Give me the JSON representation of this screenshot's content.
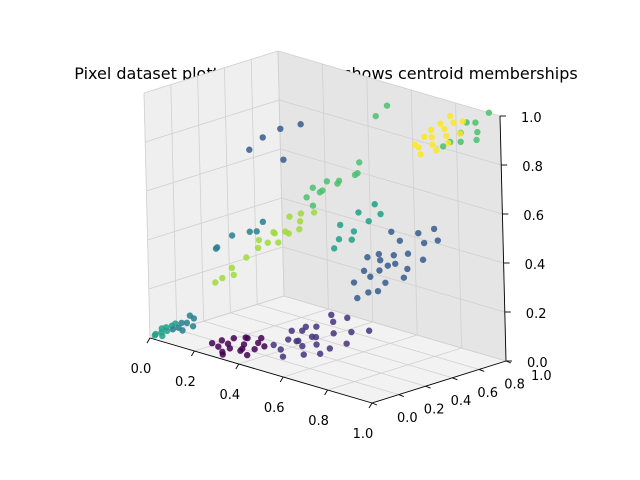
{
  "chart_data": {
    "type": "scatter",
    "projection": "3d",
    "title": "Pixel dataset plotted in 3D. Color shows centroid memberships",
    "xlabel": "",
    "ylabel": "",
    "zlabel": "",
    "xlim": [
      0,
      1
    ],
    "ylim": [
      0,
      1
    ],
    "zlim": [
      0,
      1
    ],
    "xticks": [
      "0.0",
      "0.2",
      "0.4",
      "0.6",
      "0.8",
      "1.0"
    ],
    "yticks": [
      "0.0",
      "0.2",
      "0.4",
      "0.6",
      "0.8",
      "1.0"
    ],
    "zticks": [
      "0.0",
      "0.2",
      "0.4",
      "0.6",
      "0.8",
      "1.0"
    ],
    "grid": true,
    "legend": "none",
    "series": [
      {
        "color": "#440154",
        "points": [
          [
            0.3,
            0.1,
            0.02
          ],
          [
            0.34,
            0.14,
            0.04
          ],
          [
            0.26,
            0.08,
            0.02
          ],
          [
            0.38,
            0.18,
            0.05
          ],
          [
            0.32,
            0.2,
            0.05
          ],
          [
            0.28,
            0.12,
            0.03
          ],
          [
            0.36,
            0.08,
            0.03
          ],
          [
            0.24,
            0.14,
            0.03
          ],
          [
            0.4,
            0.12,
            0.04
          ],
          [
            0.33,
            0.17,
            0.06
          ],
          [
            0.29,
            0.06,
            0.01
          ],
          [
            0.37,
            0.22,
            0.06
          ],
          [
            0.31,
            0.03,
            0.01
          ],
          [
            0.42,
            0.16,
            0.05
          ],
          [
            0.27,
            0.18,
            0.04
          ],
          [
            0.35,
            0.11,
            0.03
          ],
          [
            0.22,
            0.1,
            0.02
          ],
          [
            0.39,
            0.08,
            0.02
          ]
        ]
      },
      {
        "color": "#46327e",
        "points": [
          [
            0.55,
            0.2,
            0.1
          ],
          [
            0.6,
            0.25,
            0.12
          ],
          [
            0.5,
            0.15,
            0.06
          ],
          [
            0.65,
            0.3,
            0.14
          ],
          [
            0.58,
            0.18,
            0.09
          ],
          [
            0.52,
            0.28,
            0.12
          ],
          [
            0.62,
            0.22,
            0.1
          ],
          [
            0.48,
            0.24,
            0.08
          ],
          [
            0.7,
            0.35,
            0.15
          ],
          [
            0.56,
            0.32,
            0.14
          ],
          [
            0.45,
            0.18,
            0.06
          ],
          [
            0.66,
            0.18,
            0.08
          ],
          [
            0.54,
            0.1,
            0.05
          ],
          [
            0.6,
            0.38,
            0.16
          ],
          [
            0.72,
            0.28,
            0.12
          ],
          [
            0.5,
            0.34,
            0.12
          ],
          [
            0.58,
            0.4,
            0.18
          ],
          [
            0.64,
            0.42,
            0.18
          ],
          [
            0.46,
            0.3,
            0.1
          ],
          [
            0.68,
            0.22,
            0.1
          ],
          [
            0.53,
            0.22,
            0.09
          ],
          [
            0.61,
            0.14,
            0.07
          ],
          [
            0.75,
            0.4,
            0.16
          ],
          [
            0.57,
            0.27,
            0.11
          ]
        ]
      },
      {
        "color": "#365c8d",
        "points": [
          [
            0.7,
            0.5,
            0.35
          ],
          [
            0.75,
            0.55,
            0.4
          ],
          [
            0.68,
            0.6,
            0.42
          ],
          [
            0.8,
            0.62,
            0.45
          ],
          [
            0.72,
            0.45,
            0.3
          ],
          [
            0.78,
            0.48,
            0.35
          ],
          [
            0.82,
            0.58,
            0.4
          ],
          [
            0.74,
            0.66,
            0.48
          ],
          [
            0.66,
            0.52,
            0.36
          ],
          [
            0.85,
            0.66,
            0.5
          ],
          [
            0.76,
            0.58,
            0.44
          ],
          [
            0.7,
            0.4,
            0.28
          ],
          [
            0.88,
            0.6,
            0.45
          ],
          [
            0.64,
            0.58,
            0.4
          ],
          [
            0.8,
            0.7,
            0.52
          ],
          [
            0.73,
            0.52,
            0.38
          ],
          [
            0.84,
            0.52,
            0.38
          ],
          [
            0.77,
            0.44,
            0.32
          ],
          [
            0.69,
            0.68,
            0.5
          ],
          [
            0.86,
            0.72,
            0.55
          ],
          [
            0.71,
            0.56,
            0.41
          ],
          [
            0.79,
            0.54,
            0.42
          ],
          [
            0.9,
            0.68,
            0.52
          ],
          [
            0.65,
            0.46,
            0.32
          ],
          [
            0.35,
            0.3,
            0.86
          ],
          [
            0.4,
            0.35,
            0.9
          ],
          [
            0.3,
            0.28,
            0.8
          ],
          [
            0.45,
            0.42,
            0.92
          ],
          [
            0.38,
            0.4,
            0.76
          ]
        ]
      },
      {
        "color": "#277f8e",
        "points": [
          [
            0.2,
            0.3,
            0.42
          ],
          [
            0.25,
            0.35,
            0.44
          ],
          [
            0.18,
            0.22,
            0.38
          ],
          [
            0.28,
            0.4,
            0.48
          ],
          [
            0.15,
            0.26,
            0.36
          ],
          [
            0.3,
            0.32,
            0.46
          ],
          [
            0.1,
            0.05,
            0.06
          ],
          [
            0.12,
            0.08,
            0.08
          ],
          [
            0.08,
            0.04,
            0.05
          ],
          [
            0.14,
            0.1,
            0.1
          ],
          [
            0.16,
            0.06,
            0.08
          ],
          [
            0.11,
            0.12,
            0.1
          ],
          [
            0.13,
            0.03,
            0.06
          ],
          [
            0.09,
            0.09,
            0.07
          ]
        ]
      },
      {
        "color": "#1fa187",
        "points": [
          [
            0.02,
            0.01,
            0.02
          ],
          [
            0.04,
            0.02,
            0.03
          ],
          [
            0.06,
            0.03,
            0.04
          ],
          [
            0.03,
            0.04,
            0.04
          ],
          [
            0.05,
            0.01,
            0.02
          ],
          [
            0.07,
            0.05,
            0.06
          ],
          [
            0.01,
            0.02,
            0.01
          ],
          [
            0.08,
            0.06,
            0.07
          ],
          [
            0.05,
            0.04,
            0.05
          ],
          [
            0.6,
            0.55,
            0.5
          ],
          [
            0.65,
            0.58,
            0.55
          ],
          [
            0.58,
            0.62,
            0.56
          ],
          [
            0.62,
            0.5,
            0.48
          ],
          [
            0.55,
            0.52,
            0.46
          ],
          [
            0.68,
            0.62,
            0.58
          ],
          [
            0.57,
            0.45,
            0.44
          ],
          [
            0.63,
            0.66,
            0.6
          ],
          [
            0.52,
            0.58,
            0.5
          ]
        ]
      },
      {
        "color": "#4ac16d",
        "points": [
          [
            0.45,
            0.55,
            0.62
          ],
          [
            0.5,
            0.6,
            0.66
          ],
          [
            0.42,
            0.5,
            0.6
          ],
          [
            0.55,
            0.65,
            0.7
          ],
          [
            0.48,
            0.52,
            0.64
          ],
          [
            0.52,
            0.58,
            0.68
          ],
          [
            0.4,
            0.58,
            0.62
          ],
          [
            0.58,
            0.62,
            0.72
          ],
          [
            0.46,
            0.48,
            0.58
          ],
          [
            0.54,
            0.7,
            0.74
          ],
          [
            0.44,
            0.62,
            0.65
          ],
          [
            0.85,
            0.95,
            0.9
          ],
          [
            0.9,
            0.98,
            0.95
          ],
          [
            0.82,
            0.92,
            0.86
          ],
          [
            0.95,
            1.0,
            1.0
          ],
          [
            0.88,
            0.9,
            0.88
          ],
          [
            0.92,
            0.96,
            0.92
          ],
          [
            0.86,
            0.98,
            0.94
          ],
          [
            0.8,
            0.9,
            0.84
          ],
          [
            0.94,
            0.92,
            0.9
          ],
          [
            0.62,
            0.7,
            0.95
          ],
          [
            0.66,
            0.72,
            1.0
          ]
        ]
      },
      {
        "color": "#a0da39",
        "points": [
          [
            0.3,
            0.4,
            0.4
          ],
          [
            0.35,
            0.45,
            0.45
          ],
          [
            0.28,
            0.36,
            0.38
          ],
          [
            0.4,
            0.48,
            0.5
          ],
          [
            0.32,
            0.42,
            0.44
          ],
          [
            0.38,
            0.52,
            0.52
          ],
          [
            0.26,
            0.4,
            0.4
          ],
          [
            0.42,
            0.44,
            0.48
          ],
          [
            0.34,
            0.5,
            0.5
          ],
          [
            0.36,
            0.38,
            0.42
          ],
          [
            0.44,
            0.52,
            0.54
          ],
          [
            0.29,
            0.46,
            0.43
          ],
          [
            0.39,
            0.41,
            0.46
          ],
          [
            0.25,
            0.32,
            0.34
          ],
          [
            0.2,
            0.22,
            0.26
          ],
          [
            0.22,
            0.26,
            0.3
          ],
          [
            0.18,
            0.2,
            0.24
          ],
          [
            0.24,
            0.24,
            0.28
          ]
        ]
      },
      {
        "color": "#fde725",
        "points": [
          [
            0.78,
            0.85,
            0.88
          ],
          [
            0.82,
            0.88,
            0.92
          ],
          [
            0.75,
            0.8,
            0.84
          ],
          [
            0.85,
            0.9,
            0.95
          ],
          [
            0.8,
            0.82,
            0.86
          ],
          [
            0.76,
            0.88,
            0.9
          ],
          [
            0.84,
            0.86,
            0.9
          ],
          [
            0.72,
            0.82,
            0.84
          ],
          [
            0.88,
            0.92,
            0.96
          ],
          [
            0.79,
            0.9,
            0.93
          ],
          [
            0.83,
            0.8,
            0.85
          ],
          [
            0.74,
            0.86,
            0.87
          ],
          [
            0.86,
            0.84,
            0.88
          ],
          [
            0.81,
            0.94,
            0.96
          ],
          [
            0.77,
            0.78,
            0.82
          ],
          [
            0.89,
            0.88,
            0.92
          ]
        ]
      }
    ]
  }
}
